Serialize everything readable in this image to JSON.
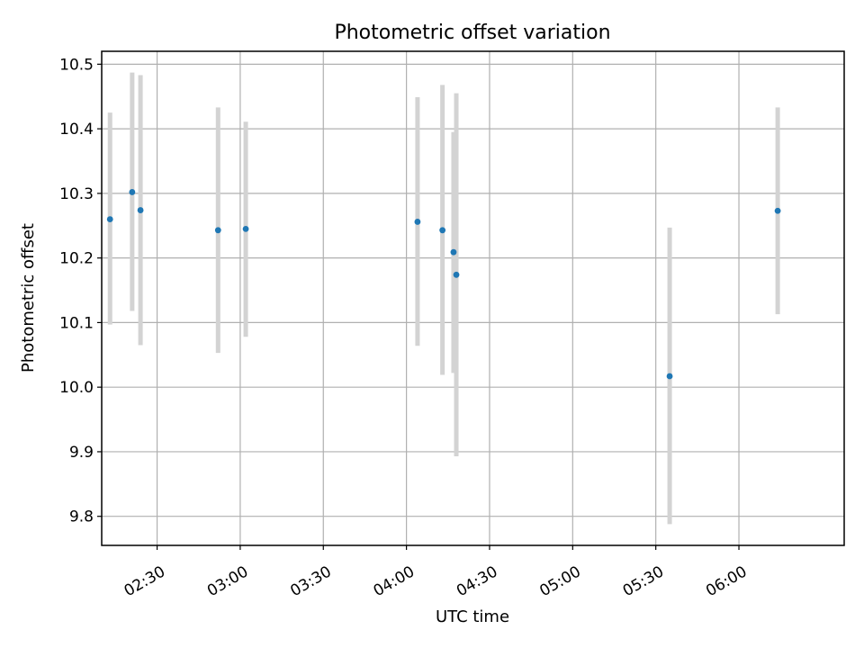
{
  "chart_data": {
    "type": "scatter",
    "title": "Photometric offset variation",
    "xlabel": "UTC time",
    "ylabel": "Photometric offset",
    "xlim": [
      "02:10",
      "06:38"
    ],
    "ylim": [
      9.755,
      10.52
    ],
    "x_ticks": [
      "02:30",
      "03:00",
      "03:30",
      "04:00",
      "04:30",
      "05:00",
      "05:30",
      "06:00"
    ],
    "y_ticks": [
      9.8,
      9.9,
      10.0,
      10.1,
      10.2,
      10.3,
      10.4,
      10.5
    ],
    "y_tick_labels": [
      "9.8",
      "9.9",
      "10.0",
      "10.1",
      "10.2",
      "10.3",
      "10.4",
      "10.5"
    ],
    "grid": true,
    "point_color": "#1f77b4",
    "errorbar_color": "#d3d3d3",
    "points": [
      {
        "x": "02:13",
        "y": 10.26,
        "y_low": 10.097,
        "y_high": 10.425
      },
      {
        "x": "02:21",
        "y": 10.302,
        "y_low": 10.118,
        "y_high": 10.487
      },
      {
        "x": "02:24",
        "y": 10.274,
        "y_low": 10.065,
        "y_high": 10.483
      },
      {
        "x": "02:52",
        "y": 10.243,
        "y_low": 10.053,
        "y_high": 10.433
      },
      {
        "x": "03:02",
        "y": 10.245,
        "y_low": 10.078,
        "y_high": 10.411
      },
      {
        "x": "04:04",
        "y": 10.256,
        "y_low": 10.064,
        "y_high": 10.449
      },
      {
        "x": "04:13",
        "y": 10.243,
        "y_low": 10.019,
        "y_high": 10.468
      },
      {
        "x": "04:17",
        "y": 10.209,
        "y_low": 10.022,
        "y_high": 10.395
      },
      {
        "x": "04:18",
        "y": 10.174,
        "y_low": 9.893,
        "y_high": 10.455
      },
      {
        "x": "05:35",
        "y": 10.017,
        "y_low": 9.788,
        "y_high": 10.247
      },
      {
        "x": "06:14",
        "y": 10.273,
        "y_low": 10.113,
        "y_high": 10.433
      }
    ]
  }
}
